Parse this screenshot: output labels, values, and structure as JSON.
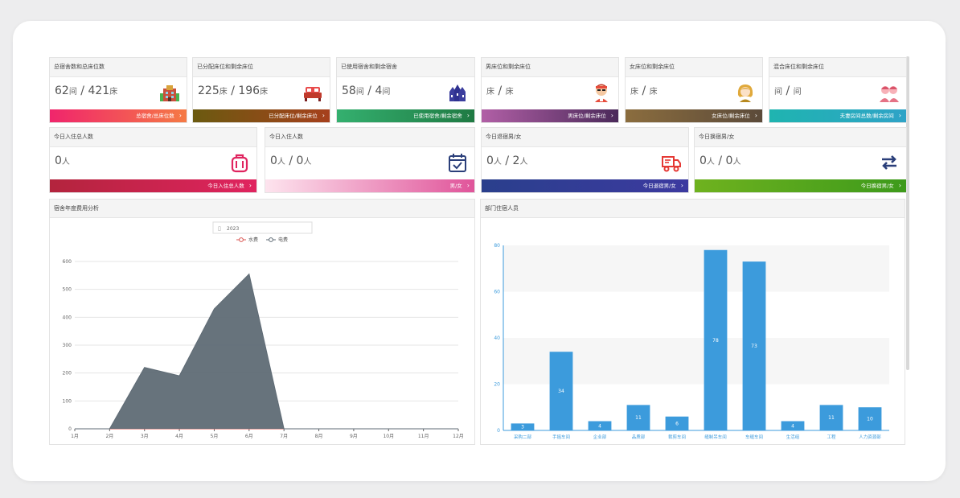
{
  "row1": [
    {
      "title": "总宿舍数和总床位数",
      "v1": "62",
      "u1": "间",
      "v2": "421",
      "u2": "床",
      "footer": "总宿舍/总床位数",
      "icon": "building-icon",
      "color": "#f0256c",
      "color2": "#f57a45"
    },
    {
      "title": "已分配床位和剩余床位",
      "v1": "225",
      "u1": "床",
      "v2": "196",
      "u2": "床",
      "footer": "已分配床位/剩余床位",
      "icon": "bed-icon",
      "color": "#6b5a10",
      "color2": "#a6401c"
    },
    {
      "title": "已使用宿舍和剩余宿舍",
      "v1": "58",
      "u1": "间",
      "v2": "4",
      "u2": "间",
      "footer": "已使用宿舍/剩余宿舍",
      "icon": "dormitory-icon",
      "color": "#34b06f",
      "color2": "#1f7a43"
    },
    {
      "title": "男床位和剩余床位",
      "v1": "",
      "u1": "床",
      "v2": "",
      "u2": "床",
      "footer": "男床位/剩余床位",
      "icon": "male-avatar-icon",
      "color": "#b15fa6",
      "color2": "#4b2a5a"
    },
    {
      "title": "女床位和剩余床位",
      "v1": "",
      "u1": "床",
      "v2": "",
      "u2": "床",
      "footer": "女床位/剩余床位",
      "icon": "female-avatar-icon",
      "color": "#8b6d3e",
      "color2": "#5b4a3a"
    },
    {
      "title": "混合床位和剩余床位",
      "v1": "",
      "u1": "间",
      "v2": "",
      "u2": "间",
      "footer": "夫妻房间总数/剩余房间",
      "icon": "couple-icon",
      "color": "#1fb4b0",
      "color2": "#2fa3c7"
    }
  ],
  "row2": [
    {
      "title": "今日入住总人数",
      "v1": "0",
      "u1": "人",
      "v2": "",
      "u2": "",
      "footer": "今日入住总人数",
      "icon": "luggage-icon",
      "color": "#b3243d",
      "color2": "#e0245f"
    },
    {
      "title": "今日入住人数",
      "v1": "0",
      "u1": "人",
      "v2": "0",
      "u2": "人",
      "footer": "男/女",
      "icon": "calendar-check-icon",
      "color": "#fde4ee",
      "color2": "#e0549a"
    },
    {
      "title": "今日退宿男/女",
      "v1": "0",
      "u1": "人",
      "v2": "2",
      "u2": "人",
      "footer": "今日退宿男/女",
      "icon": "truck-icon",
      "color": "#2a3f8c",
      "color2": "#3c3aa0"
    },
    {
      "title": "今日换宿男/女",
      "v1": "0",
      "u1": "人",
      "v2": "0",
      "u2": "人",
      "footer": "今日换宿男/女",
      "icon": "swap-icon",
      "color": "#6fb21f",
      "color2": "#3d9a1b"
    }
  ],
  "separator": "/",
  "left_panel": {
    "title": "宿舍年度费用分析",
    "year": "2023"
  },
  "right_panel": {
    "title": "部门住宿人员"
  },
  "chart_data": [
    {
      "type": "area",
      "x": [
        "1月",
        "2月",
        "3月",
        "4月",
        "5月",
        "6月",
        "7月",
        "8月",
        "9月",
        "10月",
        "11月",
        "12月"
      ],
      "series": [
        {
          "name": "水费",
          "values": [
            0,
            0,
            0,
            0,
            0,
            0,
            0,
            0,
            0,
            0,
            0,
            0
          ],
          "color": "#d9534f"
        },
        {
          "name": "电费",
          "values": [
            0,
            0,
            220,
            190,
            430,
            555,
            0,
            0,
            0,
            0,
            0,
            0
          ],
          "color": "#5f6b75"
        }
      ],
      "ylim": [
        0,
        600
      ],
      "yticks": [
        0,
        100,
        200,
        300,
        400,
        500,
        600
      ],
      "legend": "top-center",
      "grid": true
    },
    {
      "type": "bar",
      "categories": [
        "采购二部",
        "手摇车间",
        "企业部",
        "品质部",
        "裁剪车间",
        "缝制吊车间",
        "车缝车间",
        "生活组",
        "工程",
        "人力资源部"
      ],
      "values": [
        3,
        34,
        4,
        11,
        6,
        78,
        73,
        4,
        11,
        10
      ],
      "ylim": [
        0,
        80
      ],
      "yticks": [
        0,
        20,
        40,
        60,
        80
      ],
      "color": "#3c9bdc",
      "grid": true
    }
  ]
}
